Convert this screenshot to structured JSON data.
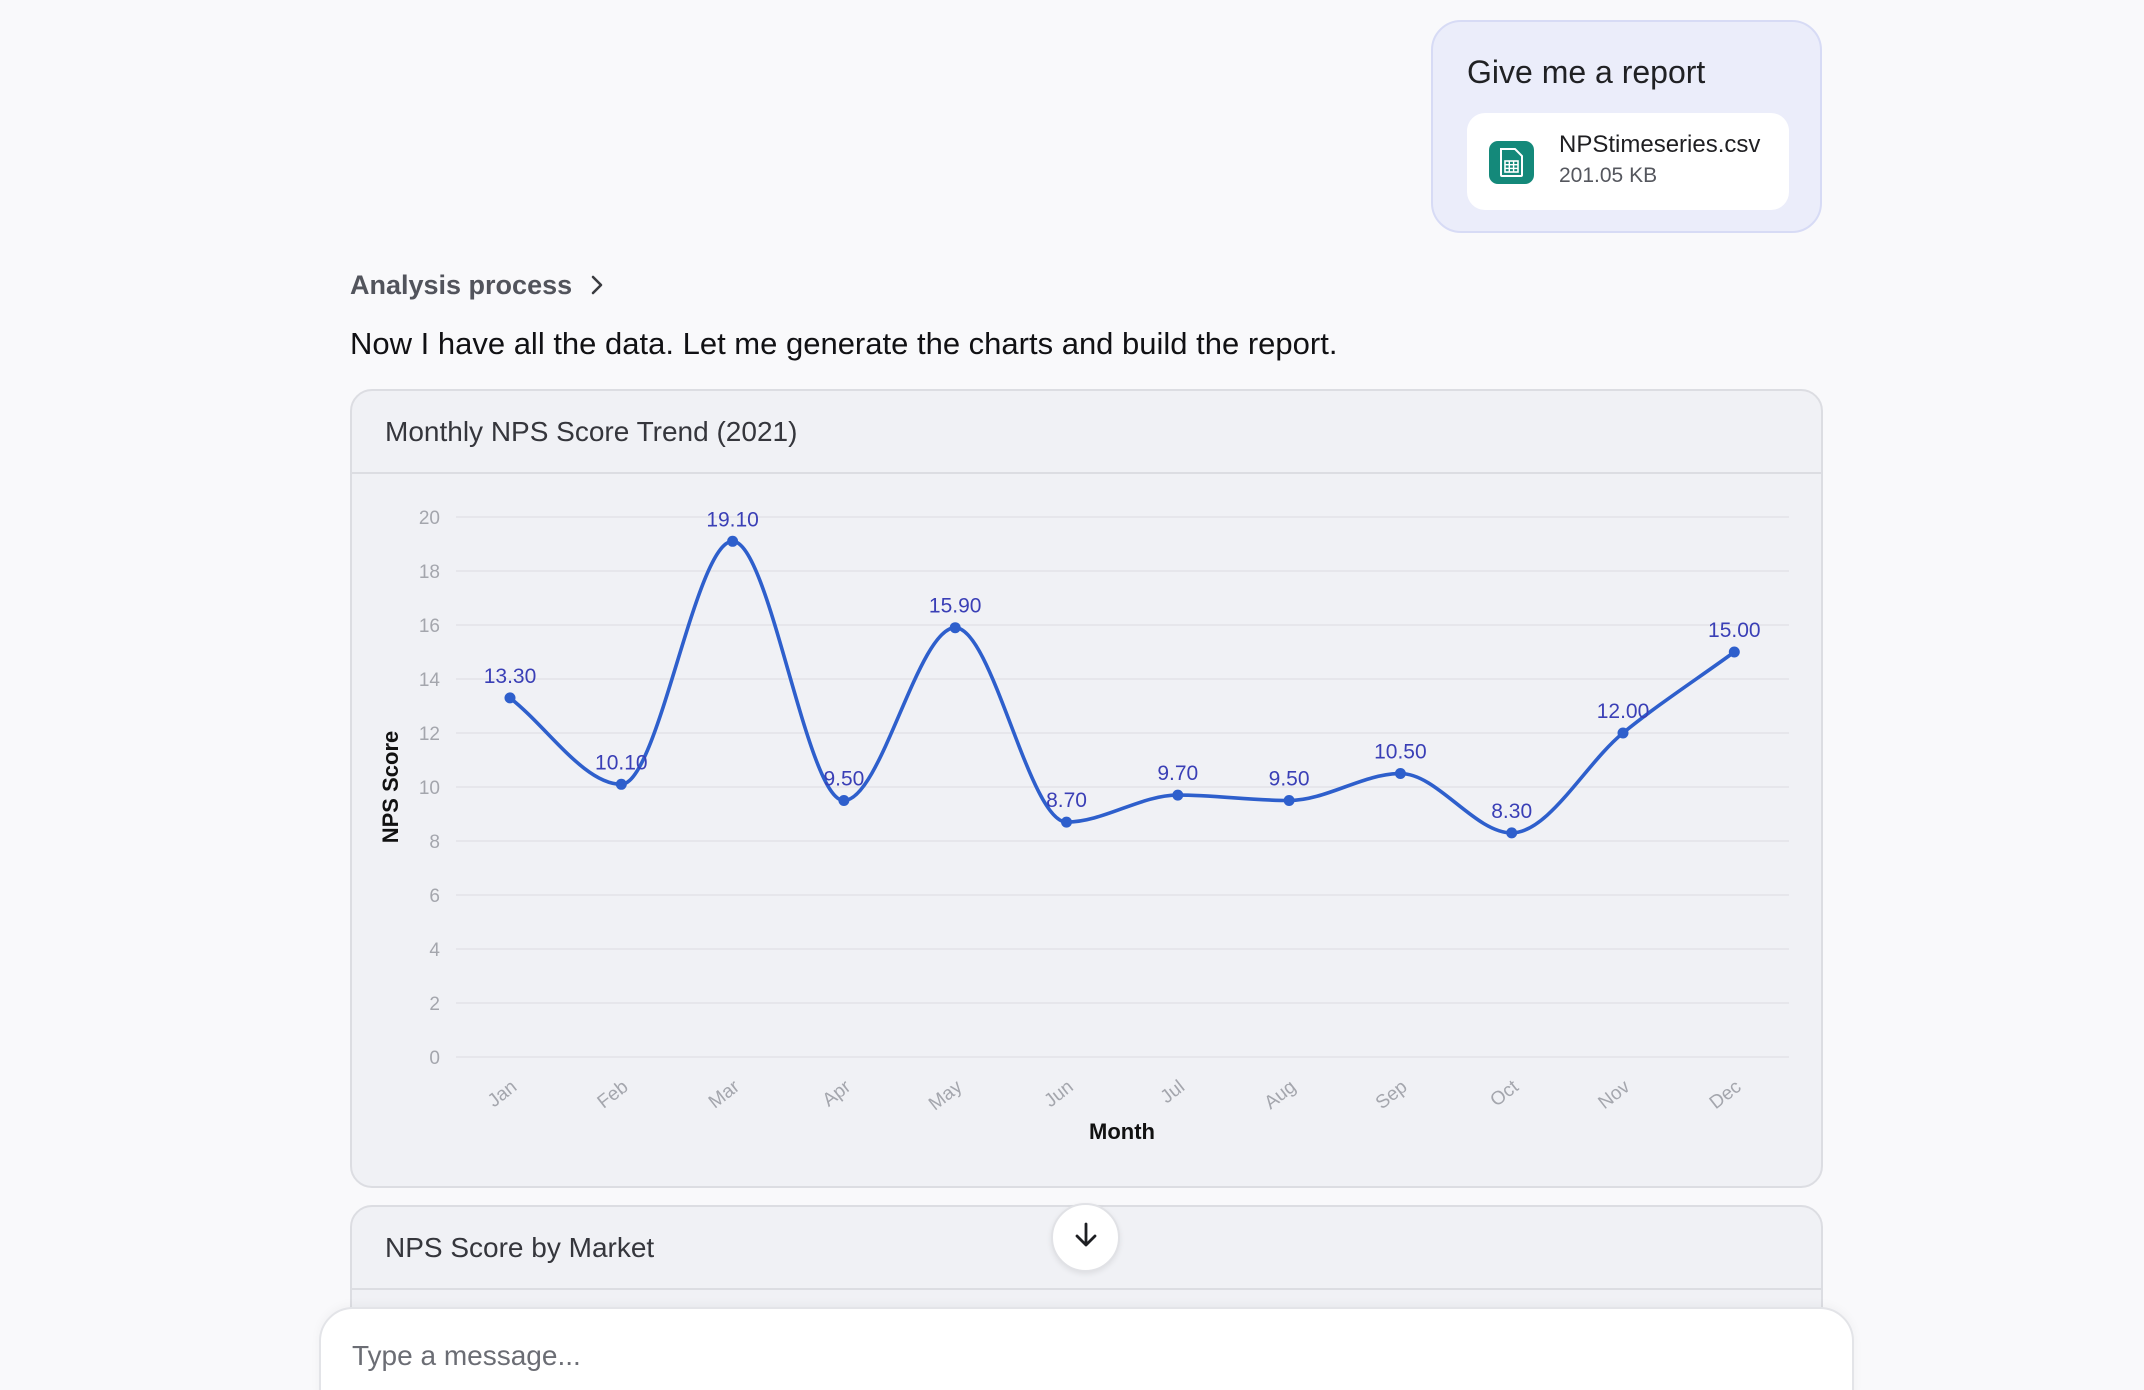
{
  "user_message": {
    "text": "Give me a report",
    "attachment": {
      "name": "NPStimeseries.csv",
      "size": "201.05 KB",
      "icon": "spreadsheet-file-icon",
      "icon_color": "#14897a"
    }
  },
  "analysis": {
    "label": "Analysis process",
    "icon": "chevron-right-icon"
  },
  "assistant_message": "Now I have all the data. Let me generate the charts and build the report.",
  "cards": [
    {
      "title": "Monthly NPS Score Trend (2021)"
    },
    {
      "title": "NPS Score by Market"
    }
  ],
  "chart_data": {
    "type": "line",
    "title": "Monthly NPS Score Trend (2021)",
    "xlabel": "Month",
    "ylabel": "NPS Score",
    "categories": [
      "Jan",
      "Feb",
      "Mar",
      "Apr",
      "May",
      "Jun",
      "Jul",
      "Aug",
      "Sep",
      "Oct",
      "Nov",
      "Dec"
    ],
    "series": [
      {
        "values": [
          13.3,
          10.1,
          19.1,
          9.5,
          15.9,
          8.7,
          9.7,
          9.5,
          10.5,
          8.3,
          12.0,
          15.0
        ],
        "data_labels": [
          "13.30",
          "10.10",
          "19.10",
          "9.50",
          "15.90",
          "8.70",
          "9.70",
          "9.50",
          "10.50",
          "8.30",
          "12.00",
          "15.00"
        ],
        "color": "#2e5fcc"
      }
    ],
    "ylim": [
      0,
      20
    ],
    "yticks": [
      "0",
      "2",
      "4",
      "6",
      "8",
      "10",
      "12",
      "14",
      "16",
      "18",
      "20"
    ],
    "grid": true,
    "legend": "none",
    "data_label_color": "#3a3fb6"
  },
  "scroll_button": {
    "icon": "arrow-down-icon"
  },
  "composer": {
    "placeholder": "Type a message..."
  }
}
